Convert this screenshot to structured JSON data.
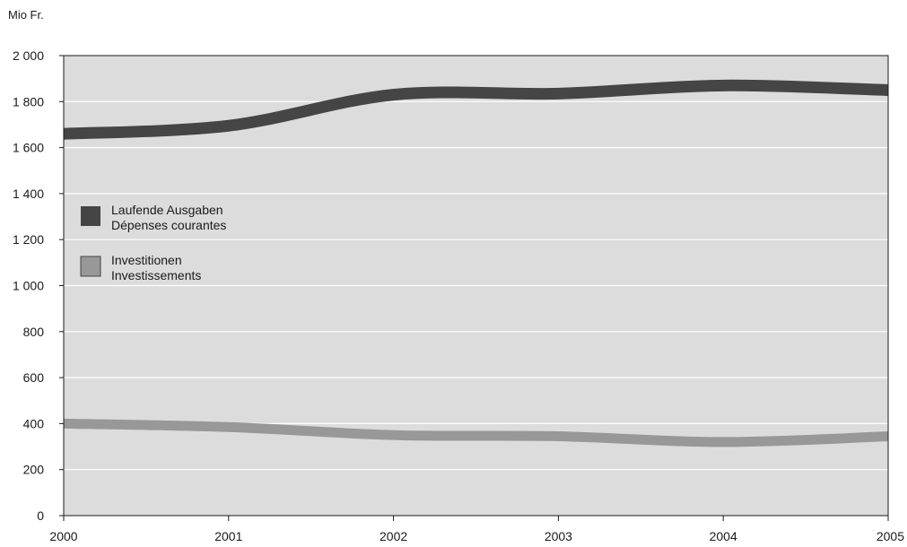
{
  "chart_data": {
    "type": "line",
    "unit_label": "Mio Fr.",
    "x": [
      "2000",
      "2001",
      "2002",
      "2003",
      "2004",
      "2005"
    ],
    "ylim": [
      0,
      2000
    ],
    "yticks": [
      0,
      200,
      400,
      600,
      800,
      1000,
      1200,
      1400,
      1600,
      1800,
      2000
    ],
    "ytick_labels": [
      "0",
      "200",
      "400",
      "600",
      "800",
      "1 000",
      "1 200",
      "1 400",
      "1 600",
      "1 800",
      "2 000"
    ],
    "grid": true,
    "legend_position": "left",
    "series": [
      {
        "name": "Laufende Ausgaben",
        "name_fr": "Dépenses courantes",
        "color": "#454545",
        "values": [
          1660,
          1695,
          1830,
          1835,
          1870,
          1850
        ]
      },
      {
        "name": "Investitionen",
        "name_fr": "Investissements",
        "color": "#989898",
        "values": [
          400,
          385,
          350,
          345,
          320,
          345
        ]
      }
    ],
    "plot_background": "#dcdcdc",
    "grid_color": "#ffffff"
  }
}
